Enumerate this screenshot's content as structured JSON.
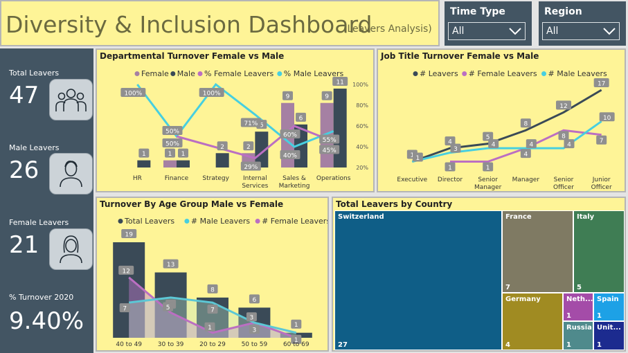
{
  "header": {
    "title": "Diversity & Inclusion Dashboard",
    "subtitle": "(Leavers Analysis)"
  },
  "slicers": [
    {
      "label": "Time Type",
      "value": "All"
    },
    {
      "label": "Region",
      "value": "All"
    }
  ],
  "kpis": [
    {
      "label": "Total Leavers",
      "value": "47",
      "icon": "group-people-icon"
    },
    {
      "label": "Male Leavers",
      "value": "26",
      "icon": "male-person-icon"
    },
    {
      "label": "Female Leavers",
      "value": "21",
      "icon": "female-person-icon"
    },
    {
      "label": "% Turnover 2020",
      "value": "9.40%"
    }
  ],
  "colors": {
    "female": "#A580A3",
    "male": "#3A4A57",
    "pct_female": "#BB6FC2",
    "pct_male": "#47CFE0",
    "panel": "#FEF497",
    "slate": "#435563"
  },
  "chart_data": [
    {
      "id": "dept",
      "type": "bar",
      "title": "Departmental Turnover Female vs Male",
      "legend": [
        "Female",
        "Male",
        "% Female Leavers",
        "% Male Leavers"
      ],
      "categories": [
        "HR",
        "Finance",
        "Strategy",
        "Internal Services",
        "Sales & Marketing",
        "Operations"
      ],
      "series": [
        {
          "name": "Female",
          "values": [
            0,
            1,
            0,
            2,
            9,
            9
          ]
        },
        {
          "name": "Male",
          "values": [
            1,
            1,
            2,
            5,
            6,
            11
          ]
        },
        {
          "name": "% Female Leavers",
          "values": [
            null,
            50,
            null,
            29,
            60,
            45
          ]
        },
        {
          "name": "% Male Leavers",
          "values": [
            100,
            50,
            100,
            71,
            40,
            55
          ]
        }
      ],
      "y2_ticks": [
        "20%",
        "40%",
        "60%",
        "80%",
        "100%"
      ],
      "y2lim": [
        20,
        100
      ],
      "ylim": [
        0,
        11
      ]
    },
    {
      "id": "job",
      "type": "line",
      "title": "Job Title Turnover Female vs Male",
      "legend": [
        "# Leavers",
        "# Female Leavers",
        "# Male Leavers"
      ],
      "categories": [
        "Executive",
        "Director",
        "Senior Manager",
        "Manager",
        "Senior Officer",
        "Junior Officer"
      ],
      "series": [
        {
          "name": "# Leavers",
          "values": [
            1,
            4,
            5,
            8,
            12,
            17
          ]
        },
        {
          "name": "# Female Leavers",
          "values": [
            null,
            1,
            1,
            4,
            8,
            7
          ]
        },
        {
          "name": "# Male Leavers",
          "values": [
            1,
            3,
            4,
            4,
            4,
            10
          ]
        }
      ],
      "ylim": [
        0,
        17
      ]
    },
    {
      "id": "age",
      "type": "bar",
      "title": "Turnover By Age Group Male vs Female",
      "legend": [
        "Total Leavers",
        "# Male Leavers",
        "# Female Leavers"
      ],
      "categories": [
        "40 to 49",
        "30 to 39",
        "20 to 29",
        "50 to 59",
        "60 to 69"
      ],
      "series": [
        {
          "name": "Total Leavers",
          "values": [
            19,
            13,
            8,
            6,
            1
          ]
        },
        {
          "name": "# Male Leavers",
          "values": [
            7,
            8,
            7,
            3,
            1
          ]
        },
        {
          "name": "# Female Leavers",
          "values": [
            12,
            5,
            1,
            3,
            0
          ]
        }
      ],
      "ylim": [
        0,
        19
      ]
    }
  ],
  "treemap": {
    "title": "Total Leavers by Country",
    "items": [
      {
        "name": "Switzerland",
        "value": "27",
        "color": "#0F5E87"
      },
      {
        "name": "France",
        "value": "7",
        "color": "#7F7A63"
      },
      {
        "name": "Italy",
        "value": "5",
        "color": "#3F7D54"
      },
      {
        "name": "Germany",
        "value": "4",
        "color": "#A08B22"
      },
      {
        "name": "Neth...",
        "value": "1",
        "color": "#A44CA8"
      },
      {
        "name": "Spain",
        "value": "1",
        "color": "#1DA1E6"
      },
      {
        "name": "Russia",
        "value": "1",
        "color": "#4F8A8C"
      },
      {
        "name": "Unit...",
        "value": "1",
        "color": "#1C2B8F"
      }
    ]
  }
}
